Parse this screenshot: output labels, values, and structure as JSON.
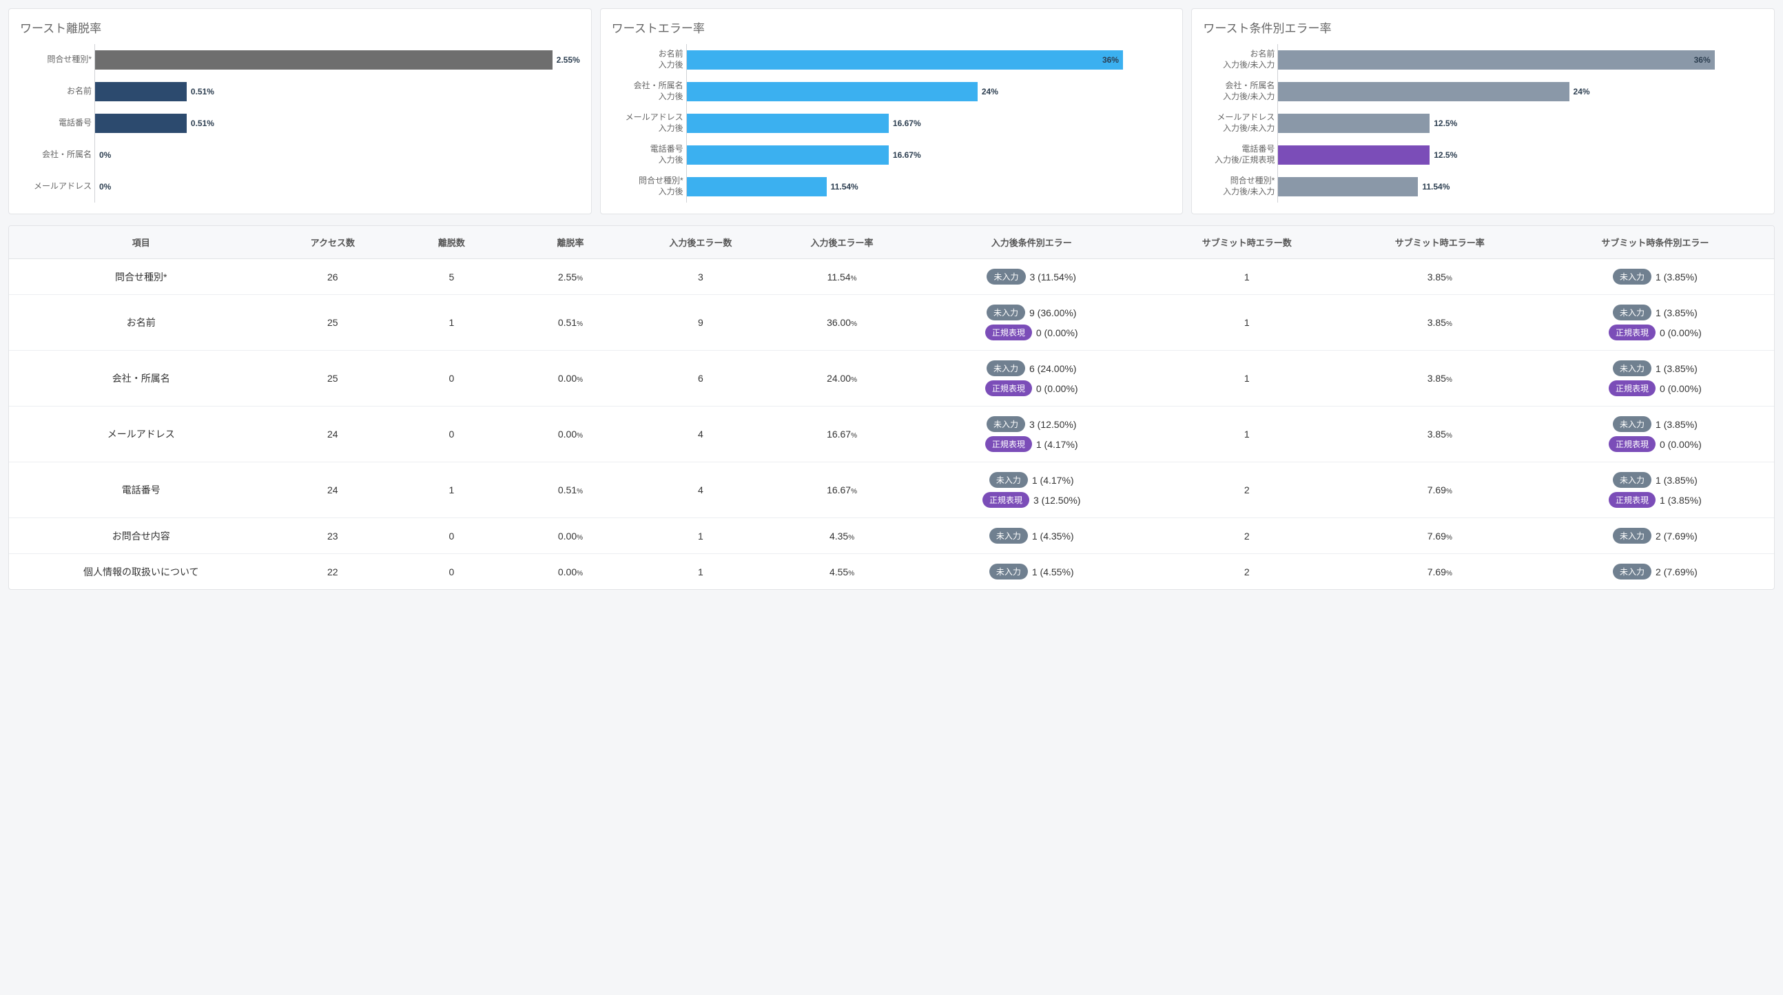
{
  "colors": {
    "bar_dark_gray": "#6e6e6e",
    "bar_navy": "#2c4a6e",
    "bar_blue": "#3bb0f0",
    "bar_slate": "#8a98a8",
    "bar_purple": "#7b4db8",
    "badge_slate": "#708090",
    "badge_purple": "#7b4db8"
  },
  "charts": [
    {
      "title": "ワースト離脱率",
      "max_percent": 2.7,
      "bars": [
        {
          "label": "問合せ種別*",
          "value": 2.55,
          "display": "2.55%",
          "color_key": "bar_dark_gray"
        },
        {
          "label": "お名前",
          "value": 0.51,
          "display": "0.51%",
          "color_key": "bar_navy"
        },
        {
          "label": "電話番号",
          "value": 0.51,
          "display": "0.51%",
          "color_key": "bar_navy"
        },
        {
          "label": "会社・所属名",
          "value": 0,
          "display": "0%",
          "color_key": "bar_navy"
        },
        {
          "label": "メールアドレス",
          "value": 0,
          "display": "0%",
          "color_key": "bar_navy"
        }
      ]
    },
    {
      "title": "ワーストエラー率",
      "max_percent": 40,
      "bars": [
        {
          "label": "お名前\n入力後",
          "value": 36,
          "display": "36%",
          "color_key": "bar_blue",
          "value_inside": true
        },
        {
          "label": "会社・所属名\n入力後",
          "value": 24,
          "display": "24%",
          "color_key": "bar_blue"
        },
        {
          "label": "メールアドレス\n入力後",
          "value": 16.67,
          "display": "16.67%",
          "color_key": "bar_blue"
        },
        {
          "label": "電話番号\n入力後",
          "value": 16.67,
          "display": "16.67%",
          "color_key": "bar_blue"
        },
        {
          "label": "問合せ種別*\n入力後",
          "value": 11.54,
          "display": "11.54%",
          "color_key": "bar_blue"
        }
      ]
    },
    {
      "title": "ワースト条件別エラー率",
      "max_percent": 40,
      "bars": [
        {
          "label": "お名前\n入力後/未入力",
          "value": 36,
          "display": "36%",
          "color_key": "bar_slate",
          "value_inside": true
        },
        {
          "label": "会社・所属名\n入力後/未入力",
          "value": 24,
          "display": "24%",
          "color_key": "bar_slate"
        },
        {
          "label": "メールアドレス\n入力後/未入力",
          "value": 12.5,
          "display": "12.5%",
          "color_key": "bar_slate"
        },
        {
          "label": "電話番号\n入力後/正規表現",
          "value": 12.5,
          "display": "12.5%",
          "color_key": "bar_purple"
        },
        {
          "label": "問合せ種別*\n入力後/未入力",
          "value": 11.54,
          "display": "11.54%",
          "color_key": "bar_slate"
        }
      ]
    }
  ],
  "table": {
    "columns": [
      "項目",
      "アクセス数",
      "離脱数",
      "離脱率",
      "入力後エラー数",
      "入力後エラー率",
      "入力後条件別エラー",
      "サブミット時エラー数",
      "サブミット時エラー率",
      "サブミット時条件別エラー"
    ],
    "badge_labels": {
      "uninput": "未入力",
      "regex": "正規表現"
    },
    "rows": [
      {
        "item": "問合せ種別*",
        "access": 26,
        "drop": 5,
        "drop_rate": "2.55",
        "in_err": 3,
        "in_err_rate": "11.54",
        "in_cond": [
          {
            "type": "uninput",
            "text": "3 (11.54%)"
          }
        ],
        "sub_err": 1,
        "sub_err_rate": "3.85",
        "sub_cond": [
          {
            "type": "uninput",
            "text": "1 (3.85%)"
          }
        ]
      },
      {
        "item": "お名前",
        "access": 25,
        "drop": 1,
        "drop_rate": "0.51",
        "in_err": 9,
        "in_err_rate": "36.00",
        "in_cond": [
          {
            "type": "uninput",
            "text": "9 (36.00%)"
          },
          {
            "type": "regex",
            "text": "0 (0.00%)"
          }
        ],
        "sub_err": 1,
        "sub_err_rate": "3.85",
        "sub_cond": [
          {
            "type": "uninput",
            "text": "1 (3.85%)"
          },
          {
            "type": "regex",
            "text": "0 (0.00%)"
          }
        ]
      },
      {
        "item": "会社・所属名",
        "access": 25,
        "drop": 0,
        "drop_rate": "0.00",
        "in_err": 6,
        "in_err_rate": "24.00",
        "in_cond": [
          {
            "type": "uninput",
            "text": "6 (24.00%)"
          },
          {
            "type": "regex",
            "text": "0 (0.00%)"
          }
        ],
        "sub_err": 1,
        "sub_err_rate": "3.85",
        "sub_cond": [
          {
            "type": "uninput",
            "text": "1 (3.85%)"
          },
          {
            "type": "regex",
            "text": "0 (0.00%)"
          }
        ]
      },
      {
        "item": "メールアドレス",
        "access": 24,
        "drop": 0,
        "drop_rate": "0.00",
        "in_err": 4,
        "in_err_rate": "16.67",
        "in_cond": [
          {
            "type": "uninput",
            "text": "3 (12.50%)"
          },
          {
            "type": "regex",
            "text": "1 (4.17%)"
          }
        ],
        "sub_err": 1,
        "sub_err_rate": "3.85",
        "sub_cond": [
          {
            "type": "uninput",
            "text": "1 (3.85%)"
          },
          {
            "type": "regex",
            "text": "0 (0.00%)"
          }
        ]
      },
      {
        "item": "電話番号",
        "access": 24,
        "drop": 1,
        "drop_rate": "0.51",
        "in_err": 4,
        "in_err_rate": "16.67",
        "in_cond": [
          {
            "type": "uninput",
            "text": "1 (4.17%)"
          },
          {
            "type": "regex",
            "text": "3 (12.50%)"
          }
        ],
        "sub_err": 2,
        "sub_err_rate": "7.69",
        "sub_cond": [
          {
            "type": "uninput",
            "text": "1 (3.85%)"
          },
          {
            "type": "regex",
            "text": "1 (3.85%)"
          }
        ]
      },
      {
        "item": "お問合せ内容",
        "access": 23,
        "drop": 0,
        "drop_rate": "0.00",
        "in_err": 1,
        "in_err_rate": "4.35",
        "in_cond": [
          {
            "type": "uninput",
            "text": "1 (4.35%)"
          }
        ],
        "sub_err": 2,
        "sub_err_rate": "7.69",
        "sub_cond": [
          {
            "type": "uninput",
            "text": "2 (7.69%)"
          }
        ]
      },
      {
        "item": "個人情報の取扱いについて",
        "access": 22,
        "drop": 0,
        "drop_rate": "0.00",
        "in_err": 1,
        "in_err_rate": "4.55",
        "in_cond": [
          {
            "type": "uninput",
            "text": "1 (4.55%)"
          }
        ],
        "sub_err": 2,
        "sub_err_rate": "7.69",
        "sub_cond": [
          {
            "type": "uninput",
            "text": "2 (7.69%)"
          }
        ]
      }
    ]
  }
}
